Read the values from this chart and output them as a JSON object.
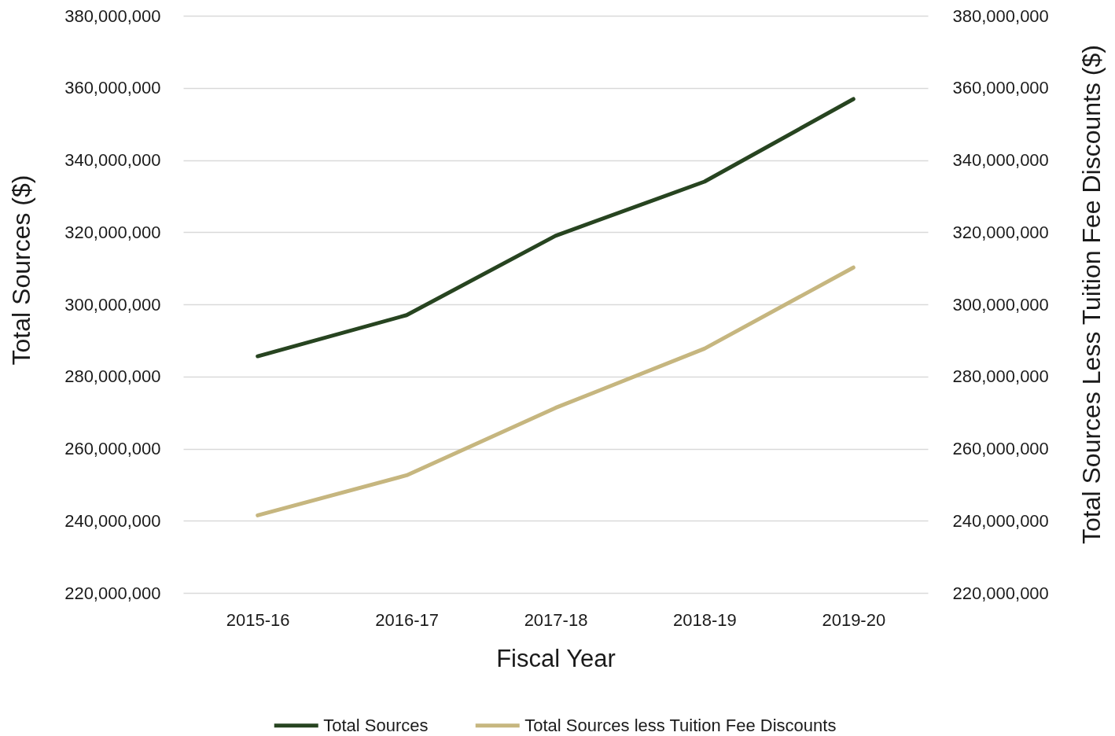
{
  "chart_data": {
    "type": "line",
    "xlabel": "Fiscal Year",
    "ylabel": "Total Sources ($)",
    "y2label": "Total Sources Less Tuition Fee Discounts ($)",
    "categories": [
      "2015-16",
      "2016-17",
      "2017-18",
      "2018-19",
      "2019-20"
    ],
    "series": [
      {
        "name": "Total Sources",
        "color": "#274420",
        "values": [
          285600000,
          297000000,
          319000000,
          334000000,
          356900000
        ]
      },
      {
        "name": "Total Sources less Tuition Fee Discounts",
        "color": "#c6b67f",
        "values": [
          241500000,
          252600000,
          271300000,
          287700000,
          310200000
        ],
        "axis": "y2"
      }
    ],
    "ylim": [
      220000000,
      380000000
    ],
    "yticks": [
      {
        "value": 220000000,
        "label": "220,000,000"
      },
      {
        "value": 240000000,
        "label": "240,000,000"
      },
      {
        "value": 260000000,
        "label": "260,000,000"
      },
      {
        "value": 280000000,
        "label": "280,000,000"
      },
      {
        "value": 300000000,
        "label": "300,000,000"
      },
      {
        "value": 320000000,
        "label": "320,000,000"
      },
      {
        "value": 340000000,
        "label": "340,000,000"
      },
      {
        "value": 360000000,
        "label": "360,000,000"
      },
      {
        "value": 380000000,
        "label": "380,000,000"
      }
    ],
    "y2lim": [
      220000000,
      380000000
    ],
    "y2ticks": [
      {
        "value": 220000000,
        "label": "220,000,000"
      },
      {
        "value": 240000000,
        "label": "240,000,000"
      },
      {
        "value": 260000000,
        "label": "260,000,000"
      },
      {
        "value": 280000000,
        "label": "280,000,000"
      },
      {
        "value": 300000000,
        "label": "300,000,000"
      },
      {
        "value": 320000000,
        "label": "320,000,000"
      },
      {
        "value": 340000000,
        "label": "340,000,000"
      },
      {
        "value": 360000000,
        "label": "360,000,000"
      },
      {
        "value": 380000000,
        "label": "380,000,000"
      }
    ],
    "grid": "y",
    "legend": "bottom",
    "line_style": "solid"
  }
}
